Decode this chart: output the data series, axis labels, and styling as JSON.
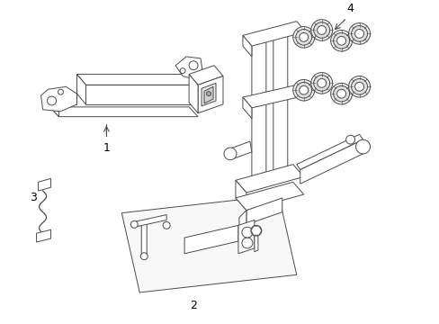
{
  "background_color": "#ffffff",
  "line_color": "#4a4a4a",
  "label_color": "#000000",
  "fig_width": 4.89,
  "fig_height": 3.6,
  "dpi": 100,
  "label_fontsize": 9
}
